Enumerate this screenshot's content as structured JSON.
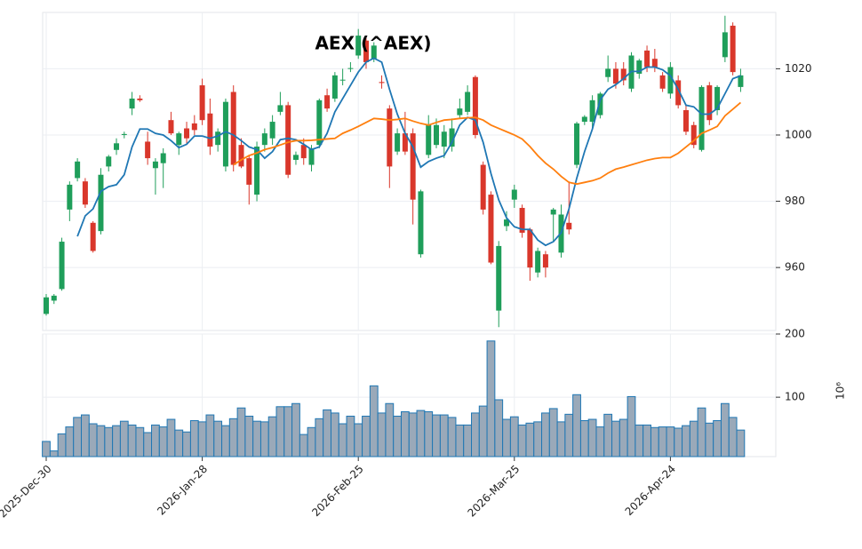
{
  "chart_data": {
    "type": "candlestick",
    "title": "AEX (^AEX)",
    "categories": [
      "2025-Dec-30",
      null,
      null,
      null,
      null,
      null,
      null,
      null,
      null,
      null,
      null,
      null,
      null,
      null,
      null,
      null,
      null,
      null,
      null,
      null,
      "2026-Jan-28",
      null,
      null,
      null,
      null,
      null,
      null,
      null,
      null,
      null,
      null,
      null,
      null,
      null,
      null,
      null,
      null,
      null,
      null,
      null,
      "2026-Feb-25",
      null,
      null,
      null,
      null,
      null,
      null,
      null,
      null,
      null,
      null,
      null,
      null,
      null,
      null,
      null,
      null,
      null,
      null,
      null,
      "2026-Mar-25",
      null,
      null,
      null,
      null,
      null,
      null,
      null,
      null,
      null,
      null,
      null,
      null,
      null,
      null,
      null,
      null,
      null,
      null,
      null,
      "2026-Apr-24",
      null,
      null,
      null,
      null,
      null,
      null,
      null,
      null,
      null
    ],
    "open": [
      946,
      950,
      953.5,
      977.5,
      987,
      986,
      973.5,
      971,
      990.5,
      995.5,
      1000,
      1008,
      1011,
      998,
      990,
      991.5,
      1004.5,
      997,
      1002,
      1003.5,
      1015,
      1006.5,
      997,
      990.5,
      1013,
      997,
      993,
      982,
      997,
      999,
      1007,
      1009,
      992.5,
      997,
      991,
      997,
      1012,
      1011,
      1016.5,
      1020,
      1024,
      1028.5,
      1023,
      1016,
      1008,
      995,
      1000.5,
      1000.5,
      964,
      994,
      997,
      996.5,
      996.5,
      1006,
      1007,
      1017.5,
      991,
      982,
      947,
      972.5,
      980.5,
      978,
      971.5,
      958.5,
      964,
      976,
      964.5,
      973.5,
      991,
      1004,
      1004,
      1006,
      1017.5,
      1020,
      1020,
      1014,
      1018.5,
      1025.5,
      1023,
      1018,
      1012.5,
      1016.5,
      1007.5,
      1003,
      995.5,
      1015,
      1007.5,
      1023.5,
      1033,
      1014.5
    ],
    "high": [
      952,
      952,
      969,
      986,
      993,
      987,
      974,
      990,
      994,
      999,
      1001,
      1013,
      1012,
      1001,
      993,
      996,
      1007,
      1001,
      1004,
      1006,
      1017,
      1011,
      1002,
      1011,
      1015,
      999,
      994,
      998,
      1002,
      1006,
      1013,
      1010,
      995,
      999,
      997,
      1011,
      1014,
      1019,
      1020,
      1022,
      1032,
      1030,
      1028,
      1018,
      1009,
      1002,
      1007,
      1002,
      983.5,
      1006,
      1005,
      1003,
      1005,
      1011,
      1015,
      1018,
      992,
      983,
      968,
      977,
      985,
      979,
      972,
      966,
      965,
      978,
      979,
      986,
      1004,
      1006,
      1012,
      1013,
      1024,
      1022,
      1022,
      1025,
      1023,
      1027,
      1026,
      1019,
      1022,
      1018,
      1009,
      1004,
      1015,
      1016,
      1015,
      1036,
      1034,
      1020
    ],
    "low": [
      945.5,
      949,
      953,
      974,
      986,
      978,
      964.5,
      970,
      989,
      994,
      999,
      1006,
      1010,
      991,
      982,
      984,
      1000,
      994,
      997,
      1000,
      1003,
      994,
      995,
      989,
      989,
      990,
      979,
      980,
      995,
      997,
      1006,
      987,
      991,
      991,
      989,
      996,
      1007,
      1010,
      1015,
      1019,
      1023,
      1020,
      1022,
      1014,
      984,
      994,
      994,
      973,
      963,
      993,
      996,
      993,
      995,
      1005,
      1006,
      999,
      976,
      961,
      942,
      971,
      978,
      969,
      956,
      957,
      957,
      968,
      963,
      970,
      990,
      1003,
      1002,
      1005,
      1016,
      1014,
      1015,
      1013,
      1017,
      1019,
      1019,
      1013,
      1011,
      1008,
      1000,
      996,
      995,
      1003,
      1006,
      1022,
      1018,
      1013
    ],
    "close": [
      951,
      951.5,
      967.8,
      985,
      992,
      979,
      965,
      988,
      993.5,
      997.5,
      1000.3,
      1011,
      1010.5,
      993,
      992,
      994.5,
      1000.5,
      1000.5,
      999,
      1001.5,
      1004.5,
      996.5,
      1001,
      1010,
      991,
      990.5,
      985,
      996.5,
      1000.5,
      1004,
      1009,
      988,
      994,
      993,
      996,
      1010.5,
      1008,
      1018,
      1016.7,
      1020.2,
      1030,
      1022,
      1027,
      1015.7,
      990.5,
      1000.5,
      995,
      980.5,
      983,
      1003,
      1003,
      1001,
      1002,
      1008,
      1013,
      1000,
      977.5,
      961.5,
      966.5,
      974.5,
      983.5,
      970.5,
      960,
      965,
      960,
      977.5,
      976,
      971.5,
      1003.5,
      1005.5,
      1010.5,
      1012.5,
      1020,
      1015.5,
      1016.5,
      1024,
      1022.5,
      1020.5,
      1020.5,
      1014,
      1020.5,
      1009,
      1001,
      997,
      1014.5,
      1004.5,
      1014.5,
      1031,
      1019,
      1018
    ],
    "up_color": "#1f9e5a",
    "down_color": "#d9372b",
    "ylim": [
      941,
      1037
    ],
    "yticks": [
      960,
      980,
      1000,
      1020
    ],
    "grid": true,
    "moving_averages": [
      {
        "color": "#1f77b4",
        "values": [
          null,
          null,
          null,
          null,
          969.4,
          975.6,
          977.7,
          983,
          984.4,
          985,
          988,
          996.4,
          1001.8,
          1001.8,
          1000.5,
          1000,
          998.3,
          996.2,
          997.2,
          999.7,
          999.7,
          999,
          999.7,
          1001,
          1000,
          998.3,
          996.4,
          995.6,
          993,
          995,
          998.6,
          999,
          998.6,
          997.2,
          995.6,
          996.4,
          1000.5,
          1007,
          1011,
          1015,
          1019,
          1022,
          1023.2,
          1022,
          1013.8,
          1006.3,
          1000.5,
          996.4,
          990.3,
          992,
          993,
          993.8,
          997.8,
          1003,
          1005.3,
          1004.5,
          997.8,
          988.4,
          980.4,
          975,
          972.3,
          971.5,
          971.5,
          968.3,
          966.7,
          967.8,
          970.5,
          977.7,
          987,
          995,
          1001.8,
          1010.6,
          1013.8,
          1015.2,
          1017,
          1019.2,
          1019.2,
          1020.5,
          1020.5,
          1019.7,
          1017.9,
          1013.8,
          1009,
          1008.5,
          1006.3,
          1006.3,
          1008,
          1012.5,
          1017,
          1017.9
        ]
      },
      {
        "color": "#ff7f0e",
        "values": [
          null,
          null,
          null,
          null,
          null,
          null,
          null,
          null,
          null,
          null,
          null,
          null,
          null,
          null,
          null,
          null,
          null,
          null,
          null,
          null,
          null,
          null,
          null,
          null,
          991,
          992.5,
          993.8,
          994.6,
          995.6,
          996.2,
          997,
          997.8,
          998.3,
          998.3,
          998.4,
          998.6,
          998.8,
          999,
          1000.5,
          1001.5,
          1002.6,
          1003.8,
          1005,
          1004.8,
          1004.5,
          1004.7,
          1005,
          1004.2,
          1003.5,
          1003,
          1003.8,
          1004.5,
          1004.7,
          1005,
          1005.2,
          1005.3,
          1004.5,
          1003,
          1002,
          1001,
          1000,
          998.8,
          996.5,
          993.8,
          991.5,
          989.7,
          987.5,
          985.7,
          985.2,
          985.7,
          986.2,
          987,
          988.5,
          989.7,
          990.3,
          991,
          991.7,
          992.4,
          992.9,
          993.2,
          993.2,
          994.5,
          996.4,
          998.3,
          1000.5,
          1001.5,
          1002.6,
          1005.8,
          1007.8,
          1009.8
        ]
      }
    ],
    "volume": {
      "values": [
        30,
        15,
        42,
        53,
        68,
        72,
        58,
        55,
        52,
        55,
        62,
        56,
        52,
        44,
        56,
        53,
        65,
        48,
        45,
        63,
        61,
        72,
        62,
        55,
        66,
        83,
        70,
        62,
        61,
        69,
        85,
        85,
        90,
        41,
        52,
        66,
        80,
        75,
        58,
        70,
        58,
        70,
        118,
        75,
        90,
        70,
        77,
        75,
        79,
        77,
        72,
        72,
        68,
        56,
        56,
        75,
        86,
        189,
        96,
        65,
        69,
        56,
        59,
        61,
        75,
        82,
        61,
        73,
        104,
        63,
        65,
        53,
        73,
        62,
        65,
        101,
        56,
        56,
        52,
        53,
        53,
        51,
        55,
        62,
        83,
        59,
        63,
        90,
        68,
        48
      ],
      "ylim": [
        6,
        200
      ],
      "yticks": [
        100,
        200
      ],
      "fill": "#9aa9b9",
      "edge": "#1f77b4",
      "exponent_label": "10⁶"
    }
  }
}
